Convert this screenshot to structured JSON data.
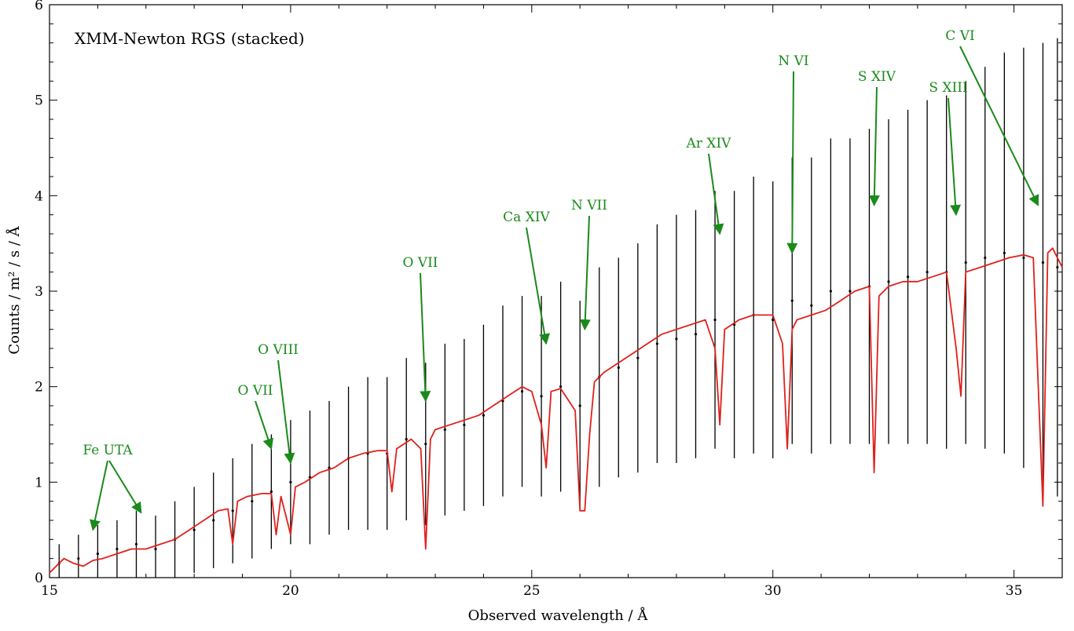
{
  "chart_data": {
    "type": "line",
    "title": "XMM-Newton RGS (stacked)",
    "xlabel": "Observed wavelength / Å",
    "ylabel": "Counts / m² / s / Å",
    "xlim": [
      15,
      36
    ],
    "ylim": [
      0,
      6
    ],
    "xticks": [
      15,
      20,
      25,
      30,
      35
    ],
    "yticks": [
      0,
      1,
      2,
      3,
      4,
      5,
      6
    ],
    "grid": false,
    "colors": {
      "model": "#e0201c",
      "data": "#000000",
      "annotation": "#1a8a1a"
    },
    "series": [
      {
        "kind": "data-with-errorbars",
        "x": [
          15.2,
          15.6,
          16.0,
          16.4,
          16.8,
          17.2,
          17.6,
          18.0,
          18.4,
          18.8,
          19.2,
          19.6,
          20.0,
          20.4,
          20.8,
          21.2,
          21.6,
          22.0,
          22.4,
          22.8,
          23.2,
          23.6,
          24.0,
          24.4,
          24.8,
          25.2,
          25.6,
          26.0,
          26.4,
          26.8,
          27.2,
          27.6,
          28.0,
          28.4,
          28.8,
          29.2,
          29.6,
          30.0,
          30.4,
          30.8,
          31.2,
          31.6,
          32.0,
          32.4,
          32.8,
          33.2,
          33.6,
          34.0,
          34.4,
          34.8,
          35.2,
          35.6,
          35.9
        ],
        "y": [
          0.15,
          0.2,
          0.25,
          0.3,
          0.35,
          0.3,
          0.4,
          0.5,
          0.6,
          0.7,
          0.8,
          0.9,
          1.0,
          1.05,
          1.15,
          1.25,
          1.3,
          1.3,
          1.45,
          1.4,
          1.55,
          1.6,
          1.7,
          1.85,
          1.95,
          1.9,
          2.0,
          1.8,
          2.1,
          2.2,
          2.3,
          2.45,
          2.5,
          2.55,
          2.7,
          2.65,
          2.75,
          2.7,
          2.9,
          2.85,
          3.0,
          3.0,
          3.05,
          3.1,
          3.15,
          3.2,
          3.2,
          3.3,
          3.35,
          3.4,
          3.35,
          3.3,
          3.25
        ],
        "yerr": [
          0.2,
          0.25,
          0.3,
          0.3,
          0.35,
          0.35,
          0.4,
          0.45,
          0.5,
          0.55,
          0.6,
          0.6,
          0.65,
          0.7,
          0.7,
          0.75,
          0.8,
          0.8,
          0.85,
          0.85,
          0.9,
          0.9,
          0.95,
          1.0,
          1.0,
          1.05,
          1.1,
          1.1,
          1.15,
          1.15,
          1.2,
          1.25,
          1.3,
          1.3,
          1.35,
          1.4,
          1.45,
          1.45,
          1.5,
          1.55,
          1.6,
          1.6,
          1.65,
          1.7,
          1.75,
          1.8,
          1.85,
          1.9,
          2.0,
          2.1,
          2.2,
          2.3,
          2.4
        ]
      },
      {
        "kind": "model",
        "x": [
          15.0,
          15.3,
          15.5,
          15.7,
          15.9,
          16.1,
          16.4,
          16.7,
          17.0,
          17.3,
          17.6,
          17.9,
          18.2,
          18.5,
          18.7,
          18.8,
          18.9,
          19.1,
          19.4,
          19.6,
          19.7,
          19.8,
          19.9,
          20.0,
          20.1,
          20.3,
          20.6,
          20.9,
          21.2,
          21.5,
          21.8,
          22.0,
          22.1,
          22.2,
          22.5,
          22.7,
          22.8,
          22.9,
          23.0,
          23.3,
          23.6,
          23.9,
          24.2,
          24.5,
          24.8,
          25.0,
          25.2,
          25.3,
          25.4,
          25.6,
          25.9,
          26.0,
          26.1,
          26.2,
          26.3,
          26.5,
          26.8,
          27.1,
          27.4,
          27.7,
          28.0,
          28.3,
          28.6,
          28.8,
          28.9,
          29.0,
          29.3,
          29.6,
          30.0,
          30.2,
          30.3,
          30.4,
          30.5,
          30.8,
          31.1,
          31.4,
          31.7,
          32.0,
          32.1,
          32.2,
          32.4,
          32.7,
          33.0,
          33.3,
          33.6,
          33.8,
          33.9,
          34.0,
          34.3,
          34.6,
          34.9,
          35.2,
          35.4,
          35.6,
          35.7,
          35.8,
          36.0
        ],
        "y": [
          0.05,
          0.2,
          0.15,
          0.12,
          0.18,
          0.2,
          0.25,
          0.3,
          0.3,
          0.35,
          0.4,
          0.5,
          0.6,
          0.7,
          0.72,
          0.35,
          0.8,
          0.85,
          0.88,
          0.88,
          0.45,
          0.85,
          0.65,
          0.45,
          0.95,
          1.0,
          1.1,
          1.15,
          1.25,
          1.3,
          1.33,
          1.33,
          0.9,
          1.35,
          1.45,
          1.35,
          0.3,
          1.45,
          1.55,
          1.6,
          1.65,
          1.7,
          1.8,
          1.9,
          2.0,
          1.95,
          1.6,
          1.15,
          1.95,
          1.98,
          1.75,
          0.7,
          0.7,
          1.5,
          2.05,
          2.15,
          2.25,
          2.35,
          2.45,
          2.55,
          2.6,
          2.65,
          2.7,
          2.4,
          1.6,
          2.6,
          2.7,
          2.75,
          2.75,
          2.45,
          1.35,
          2.6,
          2.7,
          2.75,
          2.8,
          2.9,
          3.0,
          3.05,
          1.1,
          2.95,
          3.05,
          3.1,
          3.1,
          3.15,
          3.2,
          2.4,
          1.9,
          3.2,
          3.25,
          3.3,
          3.35,
          3.38,
          3.35,
          0.75,
          3.4,
          3.45,
          3.25
        ]
      }
    ],
    "annotations": [
      {
        "text": "Fe UTA",
        "target_x": 15.9,
        "target_y": 0.5
      },
      {
        "text": "O VII",
        "target_x": 19.6,
        "target_y": 1.35
      },
      {
        "text": "O VIII",
        "target_x": 20.0,
        "target_y": 1.2
      },
      {
        "text": "O VII",
        "target_x": 22.8,
        "target_y": 1.85
      },
      {
        "text": "Ca XIV",
        "target_x": 25.3,
        "target_y": 2.45
      },
      {
        "text": "N VII",
        "target_x": 26.1,
        "target_y": 2.6
      },
      {
        "text": "Ar XIV",
        "target_x": 28.9,
        "target_y": 3.6
      },
      {
        "text": "N VI",
        "target_x": 30.4,
        "target_y": 3.4
      },
      {
        "text": "S XIV",
        "target_x": 32.1,
        "target_y": 3.9
      },
      {
        "text": "S XIII",
        "target_x": 33.8,
        "target_y": 3.8
      },
      {
        "text": "C VI",
        "target_x": 35.5,
        "target_y": 3.9
      }
    ]
  }
}
